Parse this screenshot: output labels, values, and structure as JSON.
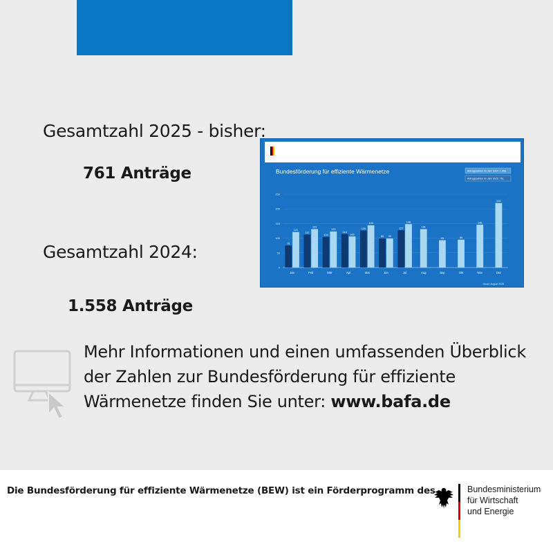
{
  "stats": {
    "label_2025": "Gesamtzahl 2025 - bisher:",
    "value_2025": "761 Anträge",
    "label_2024": "Gesamtzahl 2024:",
    "value_2024": "1.558 Anträge"
  },
  "info": {
    "text_before": "Mehr Informationen und einen  umfassenden Überblick der Zahlen zur Bundesförderung für effiziente Wärmenetze finden Sie unter: ",
    "link": "www.bafa.de"
  },
  "footer": {
    "text": "Die Bundesförderung für effiziente Wärmenetze (BEW) ist ein Förderprogramm des",
    "ministry_line1": "Bundesministerium",
    "ministry_line2": "für Wirtschaft",
    "ministry_line3": "und Energie"
  },
  "colors": {
    "brand_blue": "#0a77c5",
    "chart_bg": "#1a73c4",
    "bar_2024": "#a9d8f2",
    "bar_2025": "#0d3a73",
    "flag_black": "#000000",
    "flag_red": "#dd0000",
    "flag_gold": "#ffcc00"
  },
  "icons": [
    "monitor-icon",
    "cursor-icon",
    "federal-eagle-icon"
  ],
  "chart_data": {
    "type": "bar",
    "title": "Bundesförderung für effiziente Wärmenetze",
    "legend": [
      "Antragszahlen im Jahr 2024: 1.558",
      "Antragszahlen im Jahr 2025: 761"
    ],
    "categories": [
      "Jan",
      "Feb",
      "Mär",
      "Apr",
      "Mai",
      "Jun",
      "Jul",
      "Aug",
      "Sep",
      "Okt",
      "Nov",
      "Dez"
    ],
    "series": [
      {
        "name": "2025",
        "values": [
          75,
          112,
          104,
          114,
          126,
          99,
          127,
          null,
          null,
          null,
          null,
          null
        ]
      },
      {
        "name": "2024",
        "values": [
          121,
          131,
          123,
          106,
          144,
          99,
          148,
          131,
          93,
          95,
          146,
          220
        ]
      }
    ],
    "ylim": [
      0,
      250
    ],
    "yticks": [
      0,
      50,
      100,
      150,
      200,
      250
    ],
    "footnote": "Stand: August 2025"
  }
}
